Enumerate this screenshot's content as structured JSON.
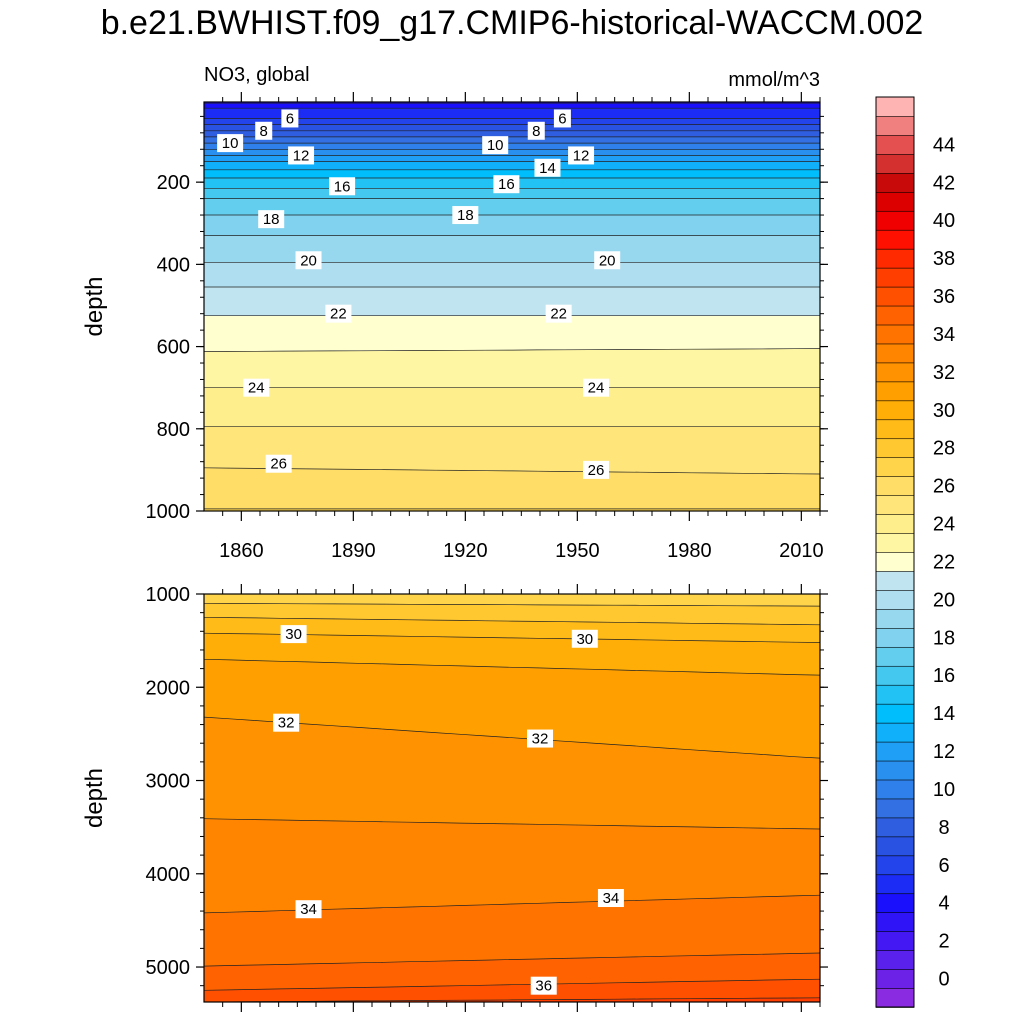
{
  "figure": {
    "title": "b.e21.BWHIST.f09_g17.CMIP6-historical-WACCM.002",
    "variable_label": "NO3, global",
    "units_label": "mmol/m^3"
  },
  "chart_data": [
    {
      "type": "contour",
      "panel": "upper",
      "xlabel": "",
      "ylabel": "depth",
      "x_ticks": [
        1860,
        1890,
        1920,
        1950,
        1980,
        2010
      ],
      "x_tick_labels": [
        "1860",
        "1890",
        "1920",
        "1950",
        "1980",
        "2010"
      ],
      "y_ticks": [
        200,
        400,
        600,
        800,
        1000
      ],
      "y_tick_labels": [
        "200",
        "400",
        "600",
        "800",
        "1000"
      ],
      "xlim": [
        1850,
        2015
      ],
      "ylim": [
        1000,
        5
      ],
      "y_reversed": true,
      "contour_levels": [
        {
          "level": 4,
          "depth": [
            [
              1850,
              8
            ],
            [
              2014,
              8
            ]
          ]
        },
        {
          "level": 5,
          "depth": [
            [
              1850,
              20
            ],
            [
              2014,
              20
            ]
          ]
        },
        {
          "level": 6,
          "depth": [
            [
              1850,
              45
            ],
            [
              2014,
              45
            ]
          ]
        },
        {
          "level": 7,
          "depth": [
            [
              1850,
              60
            ],
            [
              2014,
              60
            ]
          ]
        },
        {
          "level": 8,
          "depth": [
            [
              1850,
              75
            ],
            [
              2014,
              75
            ]
          ]
        },
        {
          "level": 9,
          "depth": [
            [
              1850,
              90
            ],
            [
              2014,
              90
            ]
          ]
        },
        {
          "level": 10,
          "depth": [
            [
              1850,
              105
            ],
            [
              2014,
              105
            ]
          ]
        },
        {
          "level": 11,
          "depth": [
            [
              1850,
              120
            ],
            [
              2014,
              120
            ]
          ]
        },
        {
          "level": 12,
          "depth": [
            [
              1850,
              135
            ],
            [
              2014,
              135
            ]
          ]
        },
        {
          "level": 13,
          "depth": [
            [
              1850,
              150
            ],
            [
              2014,
              150
            ]
          ]
        },
        {
          "level": 14,
          "depth": [
            [
              1850,
              170
            ],
            [
              2014,
              170
            ]
          ]
        },
        {
          "level": 15,
          "depth": [
            [
              1850,
              190
            ],
            [
              2014,
              190
            ]
          ]
        },
        {
          "level": 16,
          "depth": [
            [
              1850,
              215
            ],
            [
              2014,
              215
            ]
          ]
        },
        {
          "level": 17,
          "depth": [
            [
              1850,
              240
            ],
            [
              2014,
              240
            ]
          ]
        },
        {
          "level": 18,
          "depth": [
            [
              1850,
              280
            ],
            [
              2014,
              280
            ]
          ]
        },
        {
          "level": 19,
          "depth": [
            [
              1850,
              330
            ],
            [
              2014,
              330
            ]
          ]
        },
        {
          "level": 20,
          "depth": [
            [
              1850,
              395
            ],
            [
              2014,
              395
            ]
          ]
        },
        {
          "level": 21,
          "depth": [
            [
              1850,
              455
            ],
            [
              2014,
              455
            ]
          ]
        },
        {
          "level": 22,
          "depth": [
            [
              1850,
              525
            ],
            [
              2014,
              525
            ]
          ]
        },
        {
          "level": 23,
          "depth": [
            [
              1850,
              612
            ],
            [
              2014,
              605
            ]
          ]
        },
        {
          "level": 24,
          "depth": [
            [
              1850,
              700
            ],
            [
              2014,
              700
            ]
          ]
        },
        {
          "level": 25,
          "depth": [
            [
              1850,
              795
            ],
            [
              2014,
              795
            ]
          ]
        },
        {
          "level": 26,
          "depth": [
            [
              1850,
              895
            ],
            [
              2014,
              910
            ]
          ]
        },
        {
          "level": 27,
          "depth": [
            [
              1850,
              995
            ],
            [
              2014,
              995
            ]
          ]
        }
      ],
      "labels": [
        {
          "text": "6",
          "x": 1873,
          "depth": 45
        },
        {
          "text": "8",
          "x": 1866,
          "depth": 75
        },
        {
          "text": "10",
          "x": 1857,
          "depth": 105
        },
        {
          "text": "12",
          "x": 1876,
          "depth": 135
        },
        {
          "text": "16",
          "x": 1887,
          "depth": 210
        },
        {
          "text": "18",
          "x": 1868,
          "depth": 290
        },
        {
          "text": "20",
          "x": 1878,
          "depth": 390
        },
        {
          "text": "22",
          "x": 1886,
          "depth": 520
        },
        {
          "text": "24",
          "x": 1864,
          "depth": 700
        },
        {
          "text": "26",
          "x": 1870,
          "depth": 885
        },
        {
          "text": "6",
          "x": 1946,
          "depth": 45
        },
        {
          "text": "8",
          "x": 1939,
          "depth": 75
        },
        {
          "text": "10",
          "x": 1928,
          "depth": 110
        },
        {
          "text": "12",
          "x": 1951,
          "depth": 135
        },
        {
          "text": "14",
          "x": 1942,
          "depth": 165
        },
        {
          "text": "16",
          "x": 1931,
          "depth": 205
        },
        {
          "text": "18",
          "x": 1920,
          "depth": 280
        },
        {
          "text": "20",
          "x": 1958,
          "depth": 390
        },
        {
          "text": "22",
          "x": 1945,
          "depth": 520
        },
        {
          "text": "24",
          "x": 1955,
          "depth": 700
        },
        {
          "text": "26",
          "x": 1955,
          "depth": 900
        }
      ]
    },
    {
      "type": "contour",
      "panel": "lower",
      "xlabel": "",
      "ylabel": "depth",
      "x_ticks": [
        1860,
        1890,
        1920,
        1950,
        1980,
        2010
      ],
      "x_tick_labels": [],
      "y_ticks": [
        1000,
        2000,
        3000,
        4000,
        5000
      ],
      "y_tick_labels": [
        "1000",
        "2000",
        "3000",
        "4000",
        "5000"
      ],
      "xlim": [
        1850,
        2015
      ],
      "ylim": [
        5375,
        1000
      ],
      "y_reversed": true,
      "contour_levels": [
        {
          "level": 28,
          "depth": [
            [
              1850,
              1100
            ],
            [
              2014,
              1130
            ]
          ]
        },
        {
          "level": 29,
          "depth": [
            [
              1850,
              1250
            ],
            [
              2014,
              1330
            ]
          ]
        },
        {
          "level": 30,
          "depth": [
            [
              1850,
              1420
            ],
            [
              2014,
              1520
            ]
          ]
        },
        {
          "level": 31,
          "depth": [
            [
              1850,
              1700
            ],
            [
              2014,
              1870
            ]
          ]
        },
        {
          "level": 32,
          "depth": [
            [
              1850,
              2320
            ],
            [
              2014,
              2760
            ]
          ]
        },
        {
          "level": 33,
          "depth": [
            [
              1850,
              3410
            ],
            [
              2014,
              3520
            ]
          ]
        },
        {
          "level": 34,
          "depth": [
            [
              1850,
              4420
            ],
            [
              2014,
              4230
            ]
          ]
        },
        {
          "level": 35,
          "depth": [
            [
              1850,
              4990
            ],
            [
              2014,
              4850
            ]
          ]
        },
        {
          "level": 36,
          "depth": [
            [
              1850,
              5250
            ],
            [
              2014,
              5130
            ]
          ]
        },
        {
          "level": 37,
          "depth": [
            [
              1850,
              5375
            ],
            [
              2014,
              5330
            ]
          ]
        }
      ],
      "labels": [
        {
          "text": "30",
          "x": 1874,
          "depth": 1430
        },
        {
          "text": "30",
          "x": 1952,
          "depth": 1480
        },
        {
          "text": "32",
          "x": 1872,
          "depth": 2380
        },
        {
          "text": "32",
          "x": 1940,
          "depth": 2550
        },
        {
          "text": "34",
          "x": 1878,
          "depth": 4380
        },
        {
          "text": "34",
          "x": 1959,
          "depth": 4260
        },
        {
          "text": "36",
          "x": 1941,
          "depth": 5200
        }
      ]
    }
  ],
  "colorbar": {
    "levels": [
      -1,
      0,
      1,
      2,
      3,
      4,
      5,
      6,
      7,
      8,
      9,
      10,
      11,
      12,
      13,
      14,
      15,
      16,
      17,
      18,
      19,
      20,
      21,
      22,
      23,
      24,
      25,
      26,
      27,
      28,
      29,
      30,
      31,
      32,
      33,
      34,
      35,
      36,
      37,
      38,
      39,
      40,
      41,
      42,
      43,
      44,
      45,
      46
    ],
    "labels": [
      "0",
      "2",
      "4",
      "6",
      "8",
      "10",
      "12",
      "14",
      "16",
      "18",
      "20",
      "22",
      "24",
      "26",
      "28",
      "30",
      "32",
      "34",
      "36",
      "38",
      "40",
      "42",
      "44"
    ],
    "label_values": [
      0,
      2,
      4,
      6,
      8,
      10,
      12,
      14,
      16,
      18,
      20,
      22,
      24,
      26,
      28,
      30,
      32,
      34,
      36,
      38,
      40,
      42,
      44
    ],
    "colors": [
      "#8a2be2",
      "#6d22e8",
      "#5a20ec",
      "#4418f2",
      "#2f14f8",
      "#1a10fc",
      "#1c2cf4",
      "#2244ea",
      "#2a52e2",
      "#2f5ee0",
      "#3270e4",
      "#2f80ea",
      "#2a90f0",
      "#1fa0f6",
      "#10b0fa",
      "#00bdfb",
      "#22c2f4",
      "#45c8f0",
      "#64ceef",
      "#80d2ee",
      "#98d8ef",
      "#aedeef",
      "#c0e4f0",
      "#ffffd0",
      "#fff6a4",
      "#ffee8c",
      "#ffe57a",
      "#ffdd66",
      "#ffd44a",
      "#ffc830",
      "#ffbb18",
      "#ffae08",
      "#ffa000",
      "#ff9200",
      "#ff8400",
      "#ff7400",
      "#ff6200",
      "#ff5000",
      "#ff3e00",
      "#ff2a00",
      "#ff1000",
      "#f00000",
      "#dc0000",
      "#c80a0a",
      "#d43030",
      "#e45050",
      "#f08080",
      "#ffb4b4"
    ]
  }
}
